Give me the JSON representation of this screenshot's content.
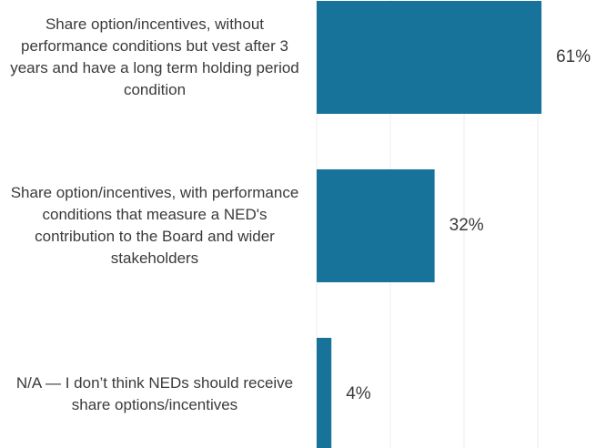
{
  "chart_data": {
    "type": "barh",
    "categories": [
      "Share option/incentives, without performance conditions but vest after 3 years and have a long term holding period condition",
      "Share option/incentives, with performance conditions that measure a NED's contribution to the Board and wider stakeholders",
      "N/A — I don’t think NEDs should receive share options/incentives"
    ],
    "values": [
      61,
      32,
      4
    ],
    "value_labels": [
      "61%",
      "32%",
      "4%"
    ],
    "color": "#17739a",
    "xlim": [
      0,
      78.5
    ],
    "xticks": [
      0,
      20,
      40,
      60
    ],
    "grid": true
  }
}
